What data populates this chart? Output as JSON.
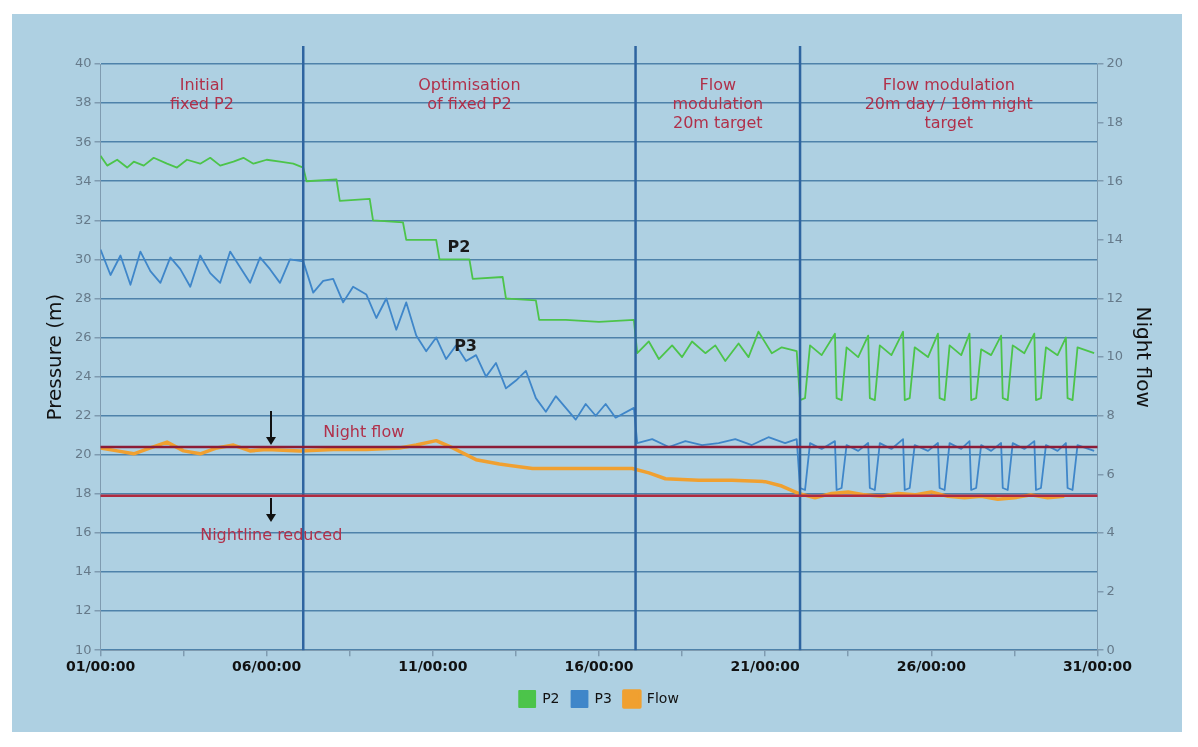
{
  "chart_data": {
    "type": "line",
    "ylabel": "Pressure (m)",
    "y2label": "Night flow",
    "xlim": [
      "--01-01",
      "--01-31"
    ],
    "ylim": [
      10,
      40
    ],
    "y2lim": [
      0,
      20
    ],
    "xticks": [
      {
        "value": "--01-01",
        "label": "01/00:00"
      },
      {
        "value": "--01-03T12:00",
        "label": null
      },
      {
        "value": "--01-06",
        "label": "06/00:00"
      },
      {
        "value": "--01-08T12:00",
        "label": null
      },
      {
        "value": "--01-11",
        "label": "11/00:00"
      },
      {
        "value": "--01-13T12:00",
        "label": null
      },
      {
        "value": "--01-16",
        "label": "16/00:00"
      },
      {
        "value": "--01-18T12:00",
        "label": null
      },
      {
        "value": "--01-21",
        "label": "21/00:00"
      },
      {
        "value": "--01-23T12:00",
        "label": null
      },
      {
        "value": "--01-26",
        "label": "26/00:00"
      },
      {
        "value": "--01-28T12:00",
        "label": null
      },
      {
        "value": "--01-31",
        "label": "31/00:00"
      }
    ],
    "yticks": [
      10,
      12,
      14,
      16,
      18,
      20,
      22,
      24,
      26,
      28,
      30,
      32,
      34,
      36,
      38,
      40
    ],
    "y2ticks": [
      0,
      2,
      4,
      6,
      8,
      10,
      12,
      14,
      16,
      18,
      20
    ],
    "grid": "y",
    "legend": "bottom",
    "marker": "none",
    "line_style": "solid",
    "series": [
      {
        "name": "P2",
        "color": "#4cc44a",
        "x": [
          "--01-01T00:00",
          "--01-01T04:48",
          "--01-01T12:00",
          "--01-01T19:12",
          "--01-02T00:00",
          "--01-02T07:12",
          "--01-02T14:24",
          "--01-03T00:00",
          "--01-03T07:12",
          "--01-03T14:24",
          "--01-04T00:00",
          "--01-04T07:12",
          "--01-04T14:24",
          "--01-05T00:00",
          "--01-05T07:12",
          "--01-05T14:24",
          "--01-06T00:00",
          "--01-06T09:36",
          "--01-06T19:12",
          "--01-07T02:24",
          "--01-07T04:48",
          "--01-08T02:24",
          "--01-08T04:48",
          "--01-09T02:24",
          "--01-09T04:48",
          "--01-10T02:24",
          "--01-10T04:48",
          "--01-11T02:24",
          "--01-11T04:48",
          "--01-12T02:24",
          "--01-12T04:48",
          "--01-13T02:24",
          "--01-13T04:48",
          "--01-14T02:24",
          "--01-14T04:48",
          "--01-15T00:00",
          "--01-16T00:00",
          "--01-17T01:12",
          "--01-17T03:36",
          "--01-17T12:00",
          "--01-17T19:12",
          "--01-18T04:48",
          "--01-18T12:00",
          "--01-18T19:12",
          "--01-19T04:48",
          "--01-19T12:00",
          "--01-19T19:12",
          "--01-20T04:48",
          "--01-20T12:00",
          "--01-20T19:12",
          "--01-21T04:48",
          "--01-21T12:00",
          "--01-21T22:48",
          "--01-22T01:12",
          "--01-22T04:48",
          "--01-22T08:24",
          "--01-22T16:48",
          "--01-23T02:24",
          "--01-23T03:36",
          "--01-23T07:12",
          "--01-23T10:48",
          "--01-23T19:12",
          "--01-24T02:24",
          "--01-24T03:36",
          "--01-24T07:12",
          "--01-24T10:48",
          "--01-24T19:12",
          "--01-25T03:36",
          "--01-25T04:48",
          "--01-25T08:24",
          "--01-25T12:00",
          "--01-25T21:36",
          "--01-26T04:48",
          "--01-26T06:00",
          "--01-26T09:36",
          "--01-26T13:12",
          "--01-26T21:36",
          "--01-27T03:36",
          "--01-27T04:48",
          "--01-27T08:24",
          "--01-27T12:00",
          "--01-27T19:12",
          "--01-28T02:24",
          "--01-28T03:36",
          "--01-28T07:12",
          "--01-28T10:48",
          "--01-28T19:12",
          "--01-29T02:24",
          "--01-29T03:36",
          "--01-29T07:12",
          "--01-29T10:48",
          "--01-29T19:12",
          "--01-30T01:12",
          "--01-30T02:24",
          "--01-30T06:00",
          "--01-30T09:36",
          "--01-30T21:36"
        ],
        "values": [
          35.3,
          34.8,
          35.1,
          34.7,
          35.0,
          34.8,
          35.2,
          34.9,
          34.7,
          35.1,
          34.9,
          35.2,
          34.8,
          35.0,
          35.2,
          34.9,
          35.1,
          35.0,
          34.9,
          34.7,
          34.0,
          34.1,
          33.0,
          33.1,
          32.0,
          31.9,
          31.0,
          31.0,
          30.0,
          30.0,
          29.0,
          29.1,
          28.0,
          27.9,
          26.9,
          26.9,
          26.8,
          26.9,
          25.2,
          25.8,
          24.9,
          25.6,
          25.0,
          25.8,
          25.2,
          25.6,
          24.8,
          25.7,
          25.0,
          26.3,
          25.2,
          25.5,
          25.3,
          22.8,
          22.9,
          25.6,
          25.1,
          26.2,
          22.9,
          22.8,
          25.5,
          25.0,
          26.1,
          22.9,
          22.8,
          25.6,
          25.1,
          26.3,
          22.8,
          22.9,
          25.5,
          25.0,
          26.2,
          22.9,
          22.8,
          25.6,
          25.1,
          26.2,
          22.8,
          22.9,
          25.4,
          25.1,
          26.1,
          22.9,
          22.8,
          25.6,
          25.2,
          26.2,
          22.8,
          22.9,
          25.5,
          25.1,
          26.0,
          22.9,
          22.8,
          25.5,
          25.2
        ]
      },
      {
        "name": "P3",
        "color": "#3f86c9",
        "x": [
          "--01-01T00:00",
          "--01-01T07:12",
          "--01-01T14:24",
          "--01-01T21:36",
          "--01-02T04:48",
          "--01-02T12:00",
          "--01-02T19:12",
          "--01-03T02:24",
          "--01-03T09:36",
          "--01-03T16:48",
          "--01-04T00:00",
          "--01-04T07:12",
          "--01-04T14:24",
          "--01-04T21:36",
          "--01-05T04:48",
          "--01-05T12:00",
          "--01-05T19:12",
          "--01-06T02:24",
          "--01-06T09:36",
          "--01-06T16:48",
          "--01-07T02:24",
          "--01-07T09:36",
          "--01-07T16:48",
          "--01-08T00:00",
          "--01-08T07:12",
          "--01-08T14:24",
          "--01-09T00:00",
          "--01-09T07:12",
          "--01-09T14:24",
          "--01-09T21:36",
          "--01-10T04:48",
          "--01-10T12:00",
          "--01-10T19:12",
          "--01-11T02:24",
          "--01-11T09:36",
          "--01-11T16:48",
          "--01-12T00:00",
          "--01-12T07:12",
          "--01-12T14:24",
          "--01-12T21:36",
          "--01-13T04:48",
          "--01-13T12:00",
          "--01-13T19:12",
          "--01-14T02:24",
          "--01-14T09:36",
          "--01-14T16:48",
          "--01-15T00:00",
          "--01-15T07:12",
          "--01-15T14:24",
          "--01-15T21:36",
          "--01-16T04:48",
          "--01-16T12:00",
          "--01-17T01:12",
          "--01-17T03:36",
          "--01-17T14:24",
          "--01-18T02:24",
          "--01-18T14:24",
          "--01-19T02:24",
          "--01-19T14:24",
          "--01-20T02:24",
          "--01-20T14:24",
          "--01-21T02:24",
          "--01-21T14:24",
          "--01-21T22:48",
          "--01-22T01:12",
          "--01-22T04:48",
          "--01-22T08:24",
          "--01-22T16:48",
          "--01-23T02:24",
          "--01-23T03:36",
          "--01-23T07:12",
          "--01-23T10:48",
          "--01-23T19:12",
          "--01-24T02:24",
          "--01-24T03:36",
          "--01-24T07:12",
          "--01-24T10:48",
          "--01-24T19:12",
          "--01-25T03:36",
          "--01-25T04:48",
          "--01-25T08:24",
          "--01-25T12:00",
          "--01-25T21:36",
          "--01-26T04:48",
          "--01-26T06:00",
          "--01-26T09:36",
          "--01-26T13:12",
          "--01-26T21:36",
          "--01-27T03:36",
          "--01-27T04:48",
          "--01-27T08:24",
          "--01-27T12:00",
          "--01-27T19:12",
          "--01-28T02:24",
          "--01-28T03:36",
          "--01-28T07:12",
          "--01-28T10:48",
          "--01-28T19:12",
          "--01-29T02:24",
          "--01-29T03:36",
          "--01-29T07:12",
          "--01-29T10:48",
          "--01-29T19:12",
          "--01-30T01:12",
          "--01-30T02:24",
          "--01-30T06:00",
          "--01-30T09:36",
          "--01-30T21:36"
        ],
        "values": [
          30.5,
          29.2,
          30.2,
          28.7,
          30.4,
          29.4,
          28.8,
          30.1,
          29.5,
          28.6,
          30.2,
          29.3,
          28.8,
          30.4,
          29.6,
          28.8,
          30.1,
          29.5,
          28.8,
          30.0,
          29.9,
          28.3,
          28.9,
          29.0,
          27.8,
          28.6,
          28.2,
          27.0,
          28.0,
          26.4,
          27.8,
          26.1,
          25.3,
          26.0,
          24.9,
          25.6,
          24.8,
          25.1,
          24.0,
          24.7,
          23.4,
          23.8,
          24.3,
          22.9,
          22.2,
          23.0,
          22.4,
          21.8,
          22.6,
          22.0,
          22.6,
          21.9,
          22.4,
          20.6,
          20.8,
          20.4,
          20.7,
          20.5,
          20.6,
          20.8,
          20.5,
          20.9,
          20.6,
          20.8,
          18.3,
          18.2,
          20.6,
          20.3,
          20.7,
          18.2,
          18.3,
          20.5,
          20.2,
          20.6,
          18.3,
          18.2,
          20.6,
          20.3,
          20.8,
          18.2,
          18.3,
          20.5,
          20.2,
          20.6,
          18.3,
          18.2,
          20.6,
          20.3,
          20.7,
          18.2,
          18.3,
          20.5,
          20.2,
          20.6,
          18.3,
          18.2,
          20.6,
          20.3,
          20.7,
          18.2,
          18.3,
          20.5,
          20.2,
          20.6,
          18.3,
          18.2,
          20.5,
          20.2
        ]
      },
      {
        "name": "Flow",
        "color": "#f0a030",
        "axis": "y2",
        "x": [
          "--01-01T00:00",
          "--01-01T12:00",
          "--01-02T00:00",
          "--01-02T12:00",
          "--01-03T00:00",
          "--01-03T12:00",
          "--01-04T00:00",
          "--01-04T12:00",
          "--01-05T00:00",
          "--01-05T12:00",
          "--01-06T00:00",
          "--01-07T00:00",
          "--01-08T00:00",
          "--01-09T00:00",
          "--01-10T00:00",
          "--01-10T12:00",
          "--01-11T02:24",
          "--01-11T14:24",
          "--01-12T07:12",
          "--01-13T00:00",
          "--01-14T00:00",
          "--01-15T00:00",
          "--01-16T00:00",
          "--01-17T00:00",
          "--01-17T12:00",
          "--01-18T00:00",
          "--01-19T00:00",
          "--01-20T00:00",
          "--01-21T00:00",
          "--01-21T12:00",
          "--01-22T00:00",
          "--01-22T12:00",
          "--01-23T00:00",
          "--01-23T12:00",
          "--01-24T00:00",
          "--01-24T12:00",
          "--01-25T00:00",
          "--01-25T12:00",
          "--01-26T00:00",
          "--01-26T12:00",
          "--01-27T00:00",
          "--01-27T12:00",
          "--01-28T00:00",
          "--01-28T12:00",
          "--01-29T00:00",
          "--01-29T12:00",
          "--01-30T00:00"
        ],
        "values": [
          6.9,
          6.8,
          6.7,
          6.9,
          7.1,
          6.8,
          6.7,
          6.9,
          7.0,
          6.8,
          6.85,
          6.8,
          6.85,
          6.85,
          6.9,
          7.0,
          7.15,
          6.9,
          6.5,
          6.35,
          6.2,
          6.2,
          6.2,
          6.2,
          6.05,
          5.85,
          5.8,
          5.8,
          5.75,
          5.6,
          5.35,
          5.2,
          5.35,
          5.4,
          5.3,
          5.25,
          5.35,
          5.3,
          5.4,
          5.25,
          5.2,
          5.25,
          5.15,
          5.2,
          5.3,
          5.2,
          5.25
        ]
      }
    ],
    "ref_lines": [
      {
        "axis": "x",
        "value": "--01-07T02:24",
        "color": "#2e64a0"
      },
      {
        "axis": "x",
        "value": "--01-17T02:24",
        "color": "#2e64a0"
      },
      {
        "axis": "x",
        "value": "--01-22T01:12",
        "color": "#2e64a0"
      },
      {
        "axis": "y",
        "value": 20.4,
        "color": "#8c1c38",
        "label": "Night flow"
      },
      {
        "axis": "y",
        "value": 17.9,
        "color": "#b02a40",
        "label": "Nightline reduced"
      }
    ],
    "annotations": [
      "Initial\nfixed P2",
      "Optimisation\nof fixed P2",
      "Flow\nmodulation\n20m target",
      "Flow modulation\n20m day / 18m night\ntarget"
    ]
  }
}
